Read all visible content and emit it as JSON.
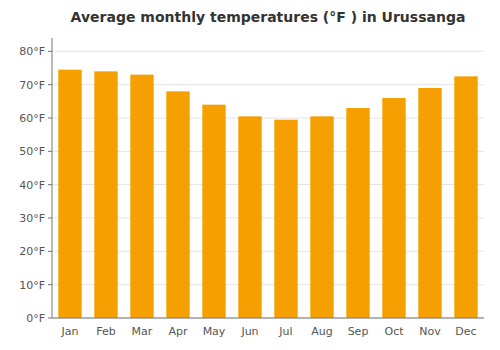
{
  "chart_data": {
    "type": "bar",
    "title": "Average monthly temperatures (°F ) in Urussanga",
    "categories": [
      "Jan",
      "Feb",
      "Mar",
      "Apr",
      "May",
      "Jun",
      "Jul",
      "Aug",
      "Sep",
      "Oct",
      "Nov",
      "Dec"
    ],
    "values": [
      74.5,
      74.0,
      73.0,
      68.0,
      64.0,
      60.5,
      59.5,
      60.5,
      63.0,
      66.0,
      69.0,
      72.5
    ],
    "color": "#F5A000",
    "ylim": [
      0,
      84
    ],
    "yticks": [
      {
        "value": 0,
        "label": "0°F"
      },
      {
        "value": 10,
        "label": "10°F"
      },
      {
        "value": 20,
        "label": "20°F"
      },
      {
        "value": 30,
        "label": "30°F"
      },
      {
        "value": 40,
        "label": "40°F"
      },
      {
        "value": 50,
        "label": "50°F"
      },
      {
        "value": 60,
        "label": "60°F"
      },
      {
        "value": 70,
        "label": "70°F"
      },
      {
        "value": 80,
        "label": "80°F"
      }
    ],
    "grid": true
  }
}
